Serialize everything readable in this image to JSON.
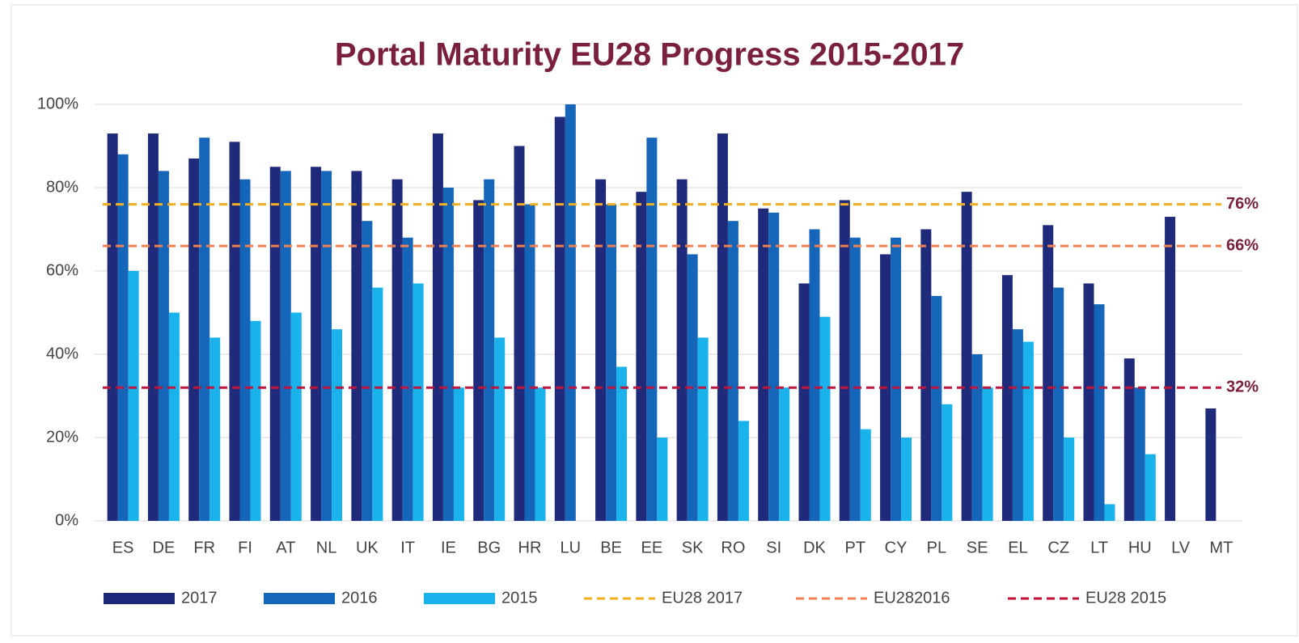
{
  "chart_data": {
    "type": "bar",
    "title": "Portal Maturity EU28 Progress 2015-2017",
    "categories": [
      "ES",
      "DE",
      "FR",
      "FI",
      "AT",
      "NL",
      "UK",
      "IT",
      "IE",
      "BG",
      "HR",
      "LU",
      "BE",
      "EE",
      "SK",
      "RO",
      "SI",
      "DK",
      "PT",
      "CY",
      "PL",
      "SE",
      "EL",
      "CZ",
      "LT",
      "HU",
      "LV",
      "MT"
    ],
    "series": [
      {
        "name": "2017",
        "color": "#1f2a7a",
        "values": [
          93,
          93,
          87,
          91,
          85,
          85,
          84,
          82,
          93,
          77,
          90,
          97,
          82,
          79,
          82,
          93,
          75,
          57,
          77,
          64,
          70,
          79,
          59,
          71,
          57,
          39,
          73,
          27
        ]
      },
      {
        "name": "2016",
        "color": "#1565b8",
        "values": [
          88,
          84,
          92,
          82,
          84,
          84,
          72,
          68,
          80,
          82,
          76,
          100,
          76,
          92,
          64,
          72,
          74,
          70,
          68,
          68,
          54,
          40,
          46,
          56,
          52,
          32,
          null,
          null
        ]
      },
      {
        "name": "2015",
        "color": "#1ab2ea",
        "values": [
          60,
          50,
          44,
          48,
          50,
          46,
          56,
          57,
          32,
          44,
          32,
          null,
          37,
          20,
          44,
          24,
          32,
          49,
          22,
          20,
          28,
          32,
          43,
          20,
          4,
          16,
          null,
          null
        ]
      }
    ],
    "reference_lines": [
      {
        "name": "EU28 2017",
        "value": 76,
        "label": "76%",
        "color": "#f0b020"
      },
      {
        "name": "EU282016",
        "value": 66,
        "label": "66%",
        "color": "#f08050"
      },
      {
        "name": "EU28 2015",
        "value": 32,
        "label": "32%",
        "color": "#c0143c"
      }
    ],
    "ylim": [
      0,
      100
    ],
    "yticks": [
      {
        "value": 0,
        "label": "0%"
      },
      {
        "value": 20,
        "label": "20%"
      },
      {
        "value": 40,
        "label": "40%"
      },
      {
        "value": 60,
        "label": "60%"
      },
      {
        "value": 80,
        "label": "80%"
      },
      {
        "value": 100,
        "label": "100%"
      }
    ],
    "grid": true
  }
}
